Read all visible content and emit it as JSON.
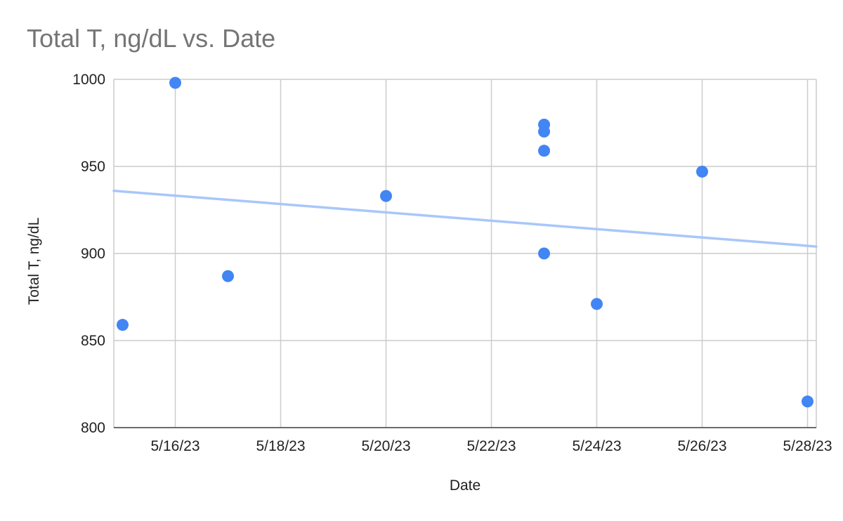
{
  "chart_data": {
    "type": "scatter",
    "title": "Total T, ng/dL vs. Date",
    "xlabel": "Date",
    "ylabel": "Total T, ng/dL",
    "xlim": [
      "5/14/23 20:00",
      "5/28/23 04:00"
    ],
    "ylim": [
      800,
      1000
    ],
    "x_ticks": [
      "5/16/23",
      "5/18/23",
      "5/20/23",
      "5/22/23",
      "5/24/23",
      "5/26/23",
      "5/28/23"
    ],
    "y_ticks": [
      800,
      850,
      900,
      950,
      1000
    ],
    "grid": true,
    "legend": "none",
    "points": [
      {
        "x": "5/15/23",
        "y": 859
      },
      {
        "x": "5/16/23",
        "y": 998
      },
      {
        "x": "5/17/23",
        "y": 887
      },
      {
        "x": "5/20/23",
        "y": 933
      },
      {
        "x": "5/23/23",
        "y": 974
      },
      {
        "x": "5/23/23",
        "y": 970
      },
      {
        "x": "5/23/23",
        "y": 959
      },
      {
        "x": "5/23/23",
        "y": 900
      },
      {
        "x": "5/24/23",
        "y": 871
      },
      {
        "x": "5/26/23",
        "y": 947
      },
      {
        "x": "5/28/23",
        "y": 815
      }
    ],
    "trendline": {
      "type": "linear",
      "from": {
        "x": "5/14/23 20:00",
        "y": 936
      },
      "to": {
        "x": "5/28/23 04:00",
        "y": 904
      }
    },
    "colors": {
      "points": "#4285f4",
      "trendline": "#a8c7fa",
      "grid": "#cccccc",
      "title": "#757575",
      "text": "#222222"
    }
  }
}
